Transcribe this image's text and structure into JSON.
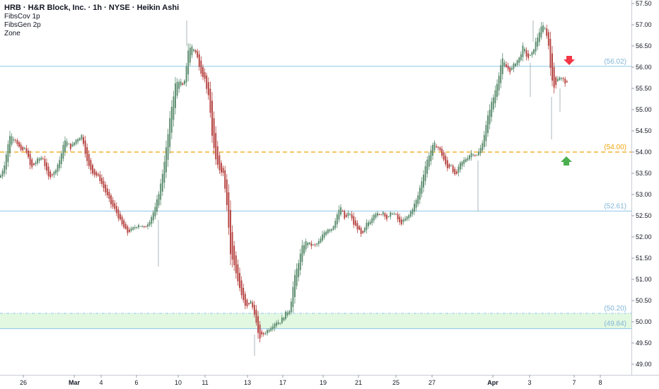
{
  "header": {
    "title": "HRB · H&R Block, Inc. · 1h · NYSE · Heikin Ashi",
    "indicators": [
      "FibsCov 1p",
      "FibsGen 2p",
      "Zone"
    ]
  },
  "colors": {
    "up": "#5b8c6e",
    "down": "#b5423f",
    "level_line": "#8ec7ec",
    "mid_level": "#f0a30a",
    "zone_fill": "#e3f8e1",
    "arrow_down": "#f23645",
    "arrow_up": "#4caf50"
  },
  "chart_data": {
    "type": "candlestick",
    "style": "Heikin Ashi",
    "ylim": [
      48.8,
      57.6
    ],
    "y_ticks": [
      "57.50",
      "57.00",
      "56.50",
      "56.00",
      "55.50",
      "55.00",
      "54.50",
      "54.00",
      "53.50",
      "53.00",
      "52.50",
      "52.00",
      "51.50",
      "51.00",
      "50.50",
      "50.00",
      "49.50",
      "49.00"
    ],
    "x_ticks": [
      "26",
      "Mar",
      "4",
      "6",
      "10",
      "11",
      "13",
      "17",
      "19",
      "21",
      "25",
      "27",
      "Apr",
      "3",
      "7",
      "8"
    ],
    "levels": [
      {
        "value": 56.02,
        "label": "(56.02)",
        "style": "solid"
      },
      {
        "value": 54.0,
        "label": "(54.00)",
        "style": "dashed"
      },
      {
        "value": 52.61,
        "label": "(52.61)",
        "style": "solid"
      },
      {
        "value": 50.2,
        "label": "(50.20)",
        "style": "dashdot"
      },
      {
        "value": 49.84,
        "label": "(49.84)",
        "style": "solid"
      }
    ],
    "zone": [
      49.84,
      50.2
    ],
    "signals": [
      {
        "type": "sell",
        "x": 805,
        "price": 56.1
      },
      {
        "type": "buy",
        "x": 801,
        "price": 53.85
      }
    ],
    "anchors": [
      [
        0,
        53.4
      ],
      [
        6,
        53.7
      ],
      [
        14,
        54.4
      ],
      [
        22,
        54.3
      ],
      [
        30,
        54.0
      ],
      [
        36,
        54.1
      ],
      [
        44,
        53.6
      ],
      [
        52,
        53.8
      ],
      [
        60,
        53.9
      ],
      [
        68,
        53.4
      ],
      [
        76,
        53.5
      ],
      [
        84,
        53.8
      ],
      [
        92,
        54.3
      ],
      [
        100,
        54.1
      ],
      [
        108,
        54.3
      ],
      [
        116,
        54.4
      ],
      [
        124,
        53.7
      ],
      [
        132,
        53.5
      ],
      [
        140,
        53.4
      ],
      [
        148,
        53.1
      ],
      [
        156,
        52.8
      ],
      [
        164,
        52.6
      ],
      [
        172,
        52.3
      ],
      [
        180,
        52.1
      ],
      [
        188,
        52.2
      ],
      [
        196,
        52.3
      ],
      [
        204,
        52.2
      ],
      [
        212,
        52.4
      ],
      [
        220,
        52.7
      ],
      [
        228,
        53.3
      ],
      [
        236,
        54.2
      ],
      [
        242,
        55.0
      ],
      [
        248,
        55.6
      ],
      [
        254,
        55.7
      ],
      [
        260,
        55.5
      ],
      [
        266,
        56.4
      ],
      [
        272,
        56.5
      ],
      [
        278,
        56.3
      ],
      [
        284,
        55.9
      ],
      [
        290,
        55.7
      ],
      [
        296,
        55.2
      ],
      [
        300,
        54.4
      ],
      [
        305,
        53.8
      ],
      [
        310,
        53.6
      ],
      [
        316,
        53.5
      ],
      [
        322,
        52.6
      ],
      [
        326,
        51.6
      ],
      [
        330,
        51.4
      ],
      [
        336,
        51.0
      ],
      [
        342,
        50.6
      ],
      [
        348,
        50.3
      ],
      [
        354,
        50.5
      ],
      [
        360,
        50.2
      ],
      [
        366,
        49.6
      ],
      [
        372,
        49.7
      ],
      [
        378,
        49.8
      ],
      [
        384,
        49.9
      ],
      [
        390,
        50.0
      ],
      [
        396,
        50.0
      ],
      [
        404,
        50.2
      ],
      [
        410,
        50.3
      ],
      [
        416,
        51.0
      ],
      [
        422,
        51.4
      ],
      [
        428,
        51.8
      ],
      [
        434,
        51.9
      ],
      [
        440,
        51.8
      ],
      [
        446,
        51.8
      ],
      [
        452,
        51.9
      ],
      [
        458,
        52.1
      ],
      [
        464,
        52.2
      ],
      [
        470,
        52.2
      ],
      [
        476,
        52.5
      ],
      [
        482,
        52.7
      ],
      [
        488,
        52.4
      ],
      [
        494,
        52.6
      ],
      [
        500,
        52.3
      ],
      [
        506,
        52.2
      ],
      [
        512,
        52.0
      ],
      [
        518,
        52.3
      ],
      [
        524,
        52.4
      ],
      [
        530,
        52.6
      ],
      [
        536,
        52.5
      ],
      [
        542,
        52.6
      ],
      [
        548,
        52.4
      ],
      [
        554,
        52.6
      ],
      [
        560,
        52.5
      ],
      [
        566,
        52.3
      ],
      [
        572,
        52.4
      ],
      [
        578,
        52.5
      ],
      [
        584,
        52.7
      ],
      [
        590,
        52.9
      ],
      [
        596,
        53.3
      ],
      [
        602,
        53.7
      ],
      [
        608,
        54.0
      ],
      [
        614,
        54.2
      ],
      [
        620,
        54.1
      ],
      [
        626,
        53.9
      ],
      [
        632,
        53.6
      ],
      [
        638,
        53.7
      ],
      [
        644,
        53.4
      ],
      [
        650,
        53.7
      ],
      [
        656,
        53.8
      ],
      [
        662,
        53.9
      ],
      [
        668,
        54.0
      ],
      [
        674,
        53.9
      ],
      [
        680,
        54.1
      ],
      [
        686,
        54.5
      ],
      [
        692,
        55.0
      ],
      [
        698,
        55.3
      ],
      [
        704,
        55.7
      ],
      [
        710,
        56.2
      ],
      [
        716,
        56.0
      ],
      [
        722,
        55.9
      ],
      [
        728,
        56.1
      ],
      [
        734,
        56.2
      ],
      [
        740,
        56.5
      ],
      [
        746,
        56.2
      ],
      [
        752,
        56.3
      ],
      [
        758,
        56.6
      ],
      [
        764,
        56.9
      ],
      [
        770,
        57.0
      ],
      [
        776,
        56.5
      ],
      [
        780,
        55.7
      ],
      [
        784,
        55.5
      ],
      [
        790,
        55.8
      ],
      [
        796,
        55.7
      ],
      [
        802,
        55.6
      ]
    ]
  }
}
